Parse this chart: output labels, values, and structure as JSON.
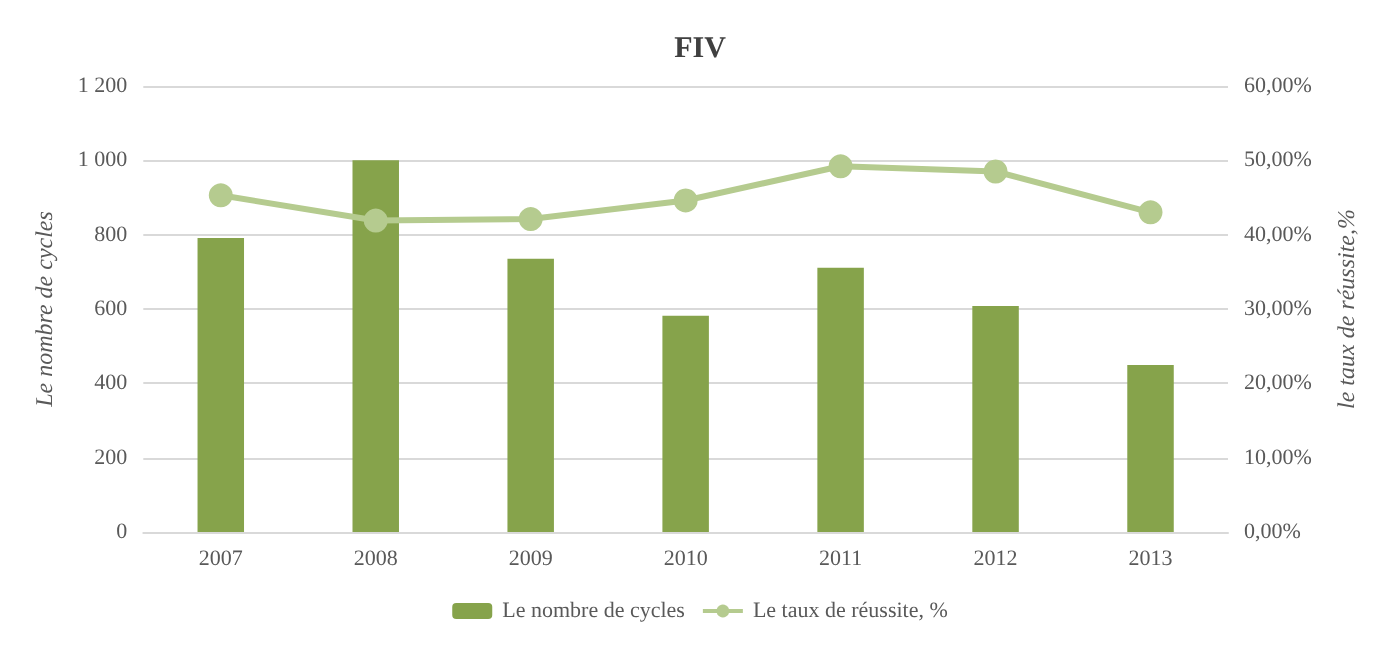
{
  "chart_data": {
    "type": "bar",
    "title": "FIV",
    "ylabel": "Le nombre de cycles",
    "y2label": "le taux de réussite,%",
    "categories": [
      "2007",
      "2008",
      "2009",
      "2010",
      "2011",
      "2012",
      "2013"
    ],
    "series": [
      {
        "name": "Le nombre de cycles",
        "color": "#86a34b",
        "values": [
          791,
          1000,
          735,
          582,
          711,
          608,
          449
        ]
      },
      {
        "name": "Le taux de réussite, %",
        "type": "line",
        "axis": "y2",
        "color": "#b5cb8f",
        "marker": "circle",
        "values": [
          45.3,
          41.9,
          42.1,
          44.6,
          49.2,
          48.5,
          43.0
        ]
      }
    ],
    "ylim": [
      0,
      1200
    ],
    "yticks": [
      0,
      200,
      400,
      600,
      800,
      {
        "value": 1000,
        "label": "1 000"
      },
      {
        "value": 1200,
        "label": "1 200"
      }
    ],
    "y2lim": [
      0,
      60
    ],
    "y2ticks": [
      {
        "value": 0,
        "label": "0,00%"
      },
      {
        "value": 10,
        "label": "10,00%"
      },
      {
        "value": 20,
        "label": "20,00%"
      },
      {
        "value": 30,
        "label": "30,00%"
      },
      {
        "value": 40,
        "label": "40,00%"
      },
      {
        "value": 50,
        "label": "50,00%"
      },
      {
        "value": 60,
        "label": "60,00%"
      }
    ],
    "grid": "y",
    "legend": "bottom"
  }
}
